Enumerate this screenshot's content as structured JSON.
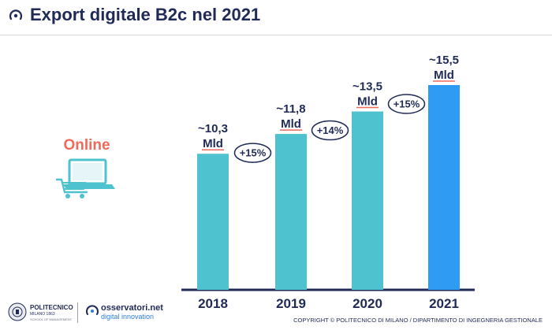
{
  "header": {
    "title": "Export digitale B2c nel 2021"
  },
  "sidebar": {
    "online_label": "Online"
  },
  "chart_data": {
    "type": "bar",
    "title": "",
    "categories": [
      "2018",
      "2019",
      "2020",
      "2021"
    ],
    "values": [
      10.3,
      11.8,
      13.5,
      15.5
    ],
    "value_labels": [
      "~10,3",
      "~11,8",
      "~13,5",
      "~15,5"
    ],
    "unit_label": "Mld",
    "growth_labels": [
      "+15%",
      "+14%",
      "+15%"
    ],
    "bar_colors": [
      "#4ec2cf",
      "#4ec2cf",
      "#4ec2cf",
      "#2f9bf2"
    ],
    "xlabel": "",
    "ylabel": "",
    "ylim": [
      0,
      15.5
    ],
    "grid": false
  },
  "footer": {
    "polimi_name": "POLITECNICO",
    "polimi_city": "MILANO 1863",
    "polimi_school": "SCHOOL OF MANAGEMENT",
    "oss_name": "osservatori.net",
    "oss_sub": "digital innovation",
    "copyright": "COPYRIGHT © POLITECNICO DI MILANO / DIPARTIMENTO DI INGEGNERIA GESTIONALE"
  },
  "colors": {
    "title": "#1f2a56",
    "accent_online": "#ef6a5b",
    "bar_teal": "#4ec2cf",
    "bar_blue": "#2f9bf2",
    "unit_underline": "#ef6a5b"
  },
  "icons": {
    "title_icon": "osservatori-logo-icon",
    "laptop_icon": "laptop-cart-icon"
  }
}
